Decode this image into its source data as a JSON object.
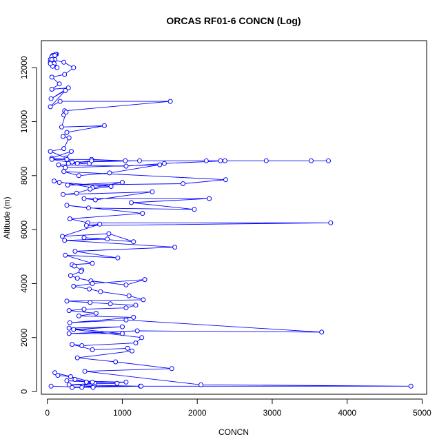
{
  "chart_data": {
    "type": "line",
    "title": "ORCAS RF01-6 CONCN (Log)",
    "xlabel": "CONCN",
    "ylabel": "Altitude (m)",
    "xlim": [
      -80,
      5060
    ],
    "ylim": [
      -100,
      13000
    ],
    "xticks": [
      0,
      1000,
      2000,
      3000,
      4000,
      5000
    ],
    "yticks": [
      0,
      2000,
      4000,
      6000,
      8000,
      10000,
      12000
    ],
    "grid": false,
    "legend": "none",
    "markers": "open-circle",
    "color": "#0000ff",
    "series": [
      {
        "x": [
          120,
          70,
          90,
          60,
          100,
          110,
          80,
          60,
          90,
          130,
          70,
          40,
          60,
          40,
          70,
          100,
          40,
          60,
          220,
          350,
          230,
          60,
          160,
          60,
          280,
          50,
          240,
          40,
          170,
          1640,
          230,
          220,
          250,
          190,
          760,
          260,
          210,
          290,
          220,
          40,
          250,
          320,
          60,
          260,
          400,
          60,
          590,
          1040,
          1230,
          330,
          560,
          280,
          590,
          2120,
          2310,
          3520,
          3750,
          2920,
          2370,
          1560,
          1050,
          150,
          240,
          1500,
          830,
          420,
          220,
          2380,
          1810,
          270,
          1000,
          600,
          90,
          160,
          850,
          570,
          390,
          210,
          1400,
          640,
          490,
          2160,
          1120,
          1960,
          550,
          260,
          1270,
          300,
          540,
          3780,
          520,
          700,
          200,
          820,
          1150,
          490,
          800,
          230,
          1700,
          370,
          940,
          240,
          600,
          330,
          360,
          460,
          450,
          310,
          400,
          580,
          1050,
          1300,
          600,
          350,
          560,
          710,
          1090,
          1280,
          260,
          570,
          840,
          1180,
          1050,
          490,
          290,
          650,
          420,
          1150,
          300,
          1050,
          3660,
          1200,
          290,
          1000,
          290,
          1000,
          350,
          1260,
          1180,
          460,
          330,
          600,
          1070,
          1130,
          400,
          910,
          1660,
          500,
          2050,
          4850,
          1240,
          290,
          1050,
          260,
          930,
          630,
          520,
          370,
          310,
          140,
          100,
          600,
          470,
          1250,
          330,
          460,
          620,
          610,
          50
        ],
        "y": [
          12500,
          12400,
          12450,
          12350,
          12300,
          12500,
          12200,
          12100,
          12150,
          12000,
          12450,
          12300,
          12400,
          12200,
          12050,
          12450,
          12150,
          12300,
          12200,
          12000,
          11750,
          11650,
          11400,
          11200,
          11250,
          10850,
          11150,
          10550,
          10750,
          10750,
          10400,
          10250,
          10350,
          9800,
          9850,
          9600,
          9450,
          9400,
          9000,
          8900,
          8650,
          8900,
          8650,
          8600,
          8450,
          8600,
          8600,
          8550,
          8550,
          8500,
          8450,
          8450,
          8550,
          8550,
          8550,
          8550,
          8550,
          8550,
          8550,
          8450,
          8350,
          8400,
          8300,
          8400,
          8100,
          8000,
          8150,
          7850,
          7700,
          7650,
          7750,
          7550,
          7800,
          7750,
          7600,
          7500,
          7350,
          7300,
          7400,
          7100,
          7150,
          7150,
          7000,
          6750,
          6800,
          6900,
          6600,
          6400,
          6250,
          6250,
          6150,
          6200,
          5750,
          5850,
          5550,
          5700,
          5650,
          5600,
          5350,
          5200,
          4950,
          5050,
          4750,
          4700,
          4650,
          4500,
          4450,
          4300,
          4200,
          4100,
          3950,
          4150,
          4000,
          3900,
          3800,
          3700,
          3550,
          3400,
          3350,
          3300,
          3250,
          3200,
          3100,
          3050,
          3000,
          2900,
          2800,
          2750,
          2550,
          2650,
          2200,
          2250,
          2150,
          2150,
          2350,
          2400,
          2300,
          2000,
          1800,
          1700,
          1750,
          1550,
          1600,
          1500,
          1250,
          1100,
          850,
          750,
          250,
          200,
          200,
          250,
          350,
          400,
          300,
          300,
          350,
          450,
          550,
          600,
          700,
          350,
          200,
          200,
          150,
          150,
          200,
          150,
          200
        ]
      }
    ]
  }
}
